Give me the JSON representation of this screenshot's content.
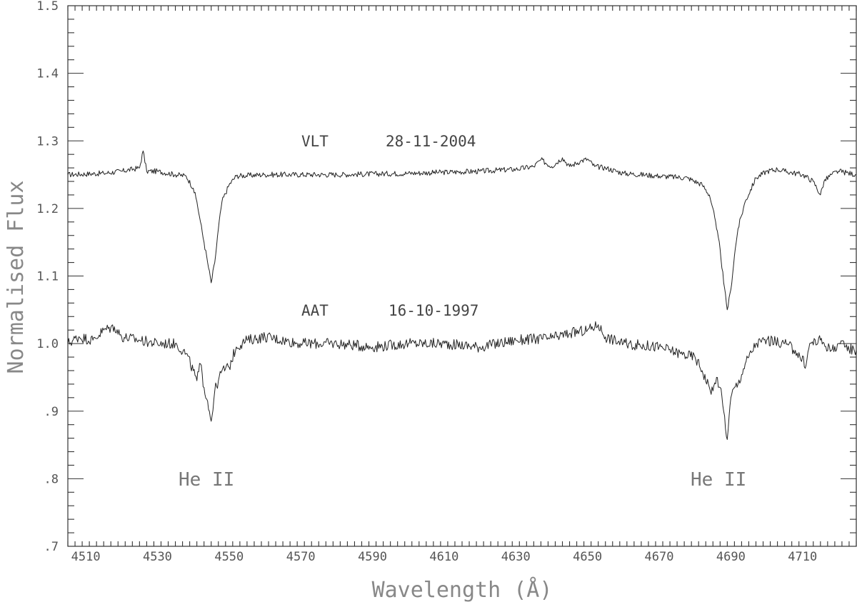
{
  "chart_data": {
    "type": "line",
    "title": "",
    "xlabel": "Wavelength (Å)",
    "ylabel": "Normalised Flux",
    "xlim": [
      4505,
      4725
    ],
    "ylim": [
      0.7,
      1.5
    ],
    "x_ticks_labeled": [
      4510,
      4530,
      4550,
      4570,
      4590,
      4610,
      4630,
      4650,
      4670,
      4690,
      4710
    ],
    "x_tick_labels": [
      "4510",
      "4530",
      "4550",
      "4570",
      "4590",
      "4610",
      "4630",
      "4650",
      "4670",
      "4690",
      "4710"
    ],
    "y_ticks": [
      0.7,
      0.8,
      0.9,
      1.0,
      1.1,
      1.2,
      1.3,
      1.4,
      1.5
    ],
    "y_tick_labels": [
      ".7",
      ".8",
      ".9",
      "1.0",
      "1.1",
      "1.2",
      "1.3",
      "1.4",
      "1.5"
    ],
    "grid": false,
    "series": [
      {
        "label": "VLT 28-11-2004",
        "x": [
          4505,
          4515,
          4520,
          4525,
          4526,
          4527,
          4530,
          4535,
          4538,
          4540,
          4541,
          4542,
          4543,
          4544,
          4545,
          4546,
          4547,
          4548,
          4550,
          4552,
          4560,
          4580,
          4600,
          4620,
          4630,
          4635,
          4637,
          4640,
          4643,
          4645,
          4648,
          4650,
          4652,
          4655,
          4660,
          4670,
          4678,
          4682,
          4684,
          4685,
          4686,
          4687,
          4688,
          4689,
          4690,
          4691,
          4692,
          4694,
          4697,
          4700,
          4703,
          4705,
          4710,
          4713,
          4715,
          4716,
          4718,
          4720,
          4725
        ],
        "y": [
          1.25,
          1.252,
          1.255,
          1.26,
          1.285,
          1.255,
          1.255,
          1.25,
          1.248,
          1.23,
          1.21,
          1.18,
          1.15,
          1.12,
          1.09,
          1.12,
          1.17,
          1.21,
          1.235,
          1.248,
          1.25,
          1.25,
          1.252,
          1.255,
          1.258,
          1.262,
          1.272,
          1.262,
          1.275,
          1.262,
          1.27,
          1.273,
          1.262,
          1.26,
          1.252,
          1.248,
          1.245,
          1.235,
          1.22,
          1.2,
          1.17,
          1.14,
          1.09,
          1.05,
          1.08,
          1.13,
          1.17,
          1.21,
          1.245,
          1.255,
          1.258,
          1.255,
          1.25,
          1.24,
          1.22,
          1.24,
          1.25,
          1.255,
          1.25
        ]
      },
      {
        "label": "AAT 16-10-1997",
        "x": [
          4505,
          4508,
          4512,
          4515,
          4518,
          4520,
          4525,
          4530,
          4535,
          4538,
          4540,
          4541,
          4542,
          4543,
          4544,
          4545,
          4546,
          4547,
          4548,
          4550,
          4552,
          4555,
          4560,
          4570,
          4580,
          4590,
          4600,
          4610,
          4620,
          4630,
          4640,
          4645,
          4650,
          4653,
          4655,
          4660,
          4670,
          4676,
          4680,
          4682,
          4684,
          4685,
          4686,
          4687,
          4688,
          4689,
          4690,
          4691,
          4692,
          4694,
          4697,
          4700,
          4705,
          4708,
          4711,
          4712,
          4715,
          4718,
          4720,
          4722,
          4725
        ],
        "y": [
          1.0,
          1.01,
          1.005,
          1.02,
          1.025,
          1.01,
          1.005,
          1.0,
          1.0,
          0.985,
          0.96,
          0.945,
          0.97,
          0.935,
          0.915,
          0.885,
          0.93,
          0.945,
          0.96,
          0.965,
          0.995,
          1.005,
          1.01,
          1.0,
          1.0,
          0.995,
          1.0,
          1.0,
          0.995,
          1.005,
          1.008,
          1.015,
          1.02,
          1.028,
          1.01,
          1.0,
          0.995,
          0.985,
          0.98,
          0.96,
          0.935,
          0.93,
          0.95,
          0.935,
          0.9,
          0.858,
          0.92,
          0.935,
          0.94,
          0.97,
          1.0,
          1.005,
          1.0,
          0.99,
          0.968,
          1.0,
          1.005,
          0.99,
          1.0,
          0.995,
          0.99
        ]
      }
    ],
    "annotations": {
      "vlt_inst": "VLT",
      "vlt_date": "28-11-2004",
      "aat_inst": "AAT",
      "aat_date": "16-10-1997",
      "line_left": "He II",
      "line_right": "He II"
    }
  }
}
